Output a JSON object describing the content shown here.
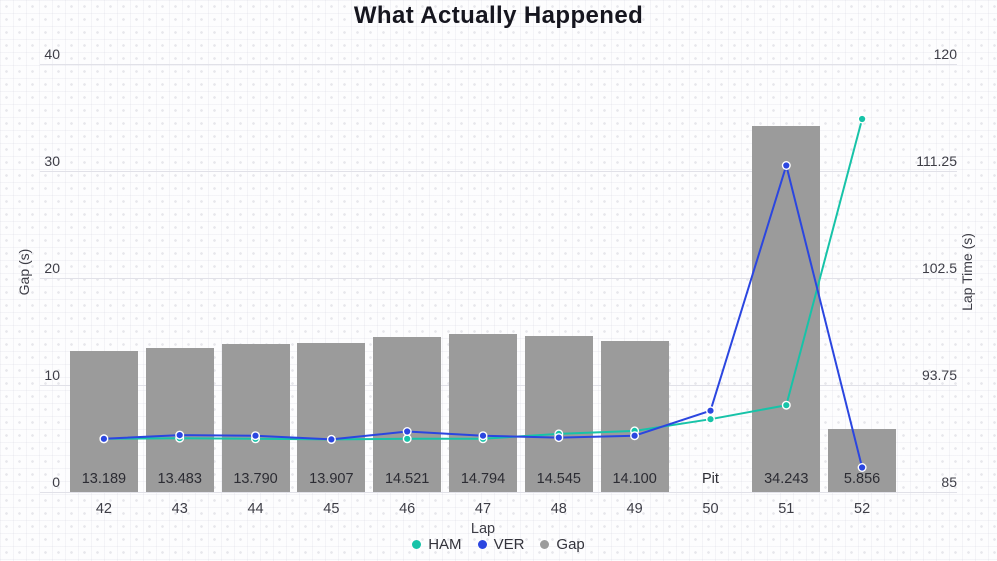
{
  "chart_data": {
    "type": "bar+line combo",
    "title": "What Actually Happened",
    "x": [
      42,
      43,
      44,
      45,
      46,
      47,
      48,
      49,
      50,
      51,
      52
    ],
    "x_tick_labels": [
      "42",
      "43",
      "44",
      "45",
      "46",
      "47",
      "48",
      "49",
      "50",
      "51",
      "52"
    ],
    "xlabel": "Lap",
    "left_axis": {
      "label": "Gap (s)",
      "range": [
        0,
        40
      ],
      "tick_values": [
        0,
        10,
        20,
        30,
        40
      ],
      "tick_labels": [
        "0",
        "10",
        "20",
        "30",
        "40"
      ]
    },
    "right_axis": {
      "label": "Lap Time (s)",
      "range": [
        85,
        120
      ],
      "tick_values": [
        85,
        93.75,
        102.5,
        111.25,
        120
      ],
      "tick_labels": [
        "85",
        "93.75",
        "102.5",
        "111.25",
        "120"
      ]
    },
    "grid": "horizontal gridlines only, dotted cross-pattern page background",
    "series": [
      {
        "name": "HAM",
        "type": "line",
        "axis": "right",
        "color": "#17c3a8",
        "values": [
          89.35,
          89.4,
          89.35,
          89.3,
          89.35,
          89.35,
          89.75,
          90.0,
          90.95,
          92.1,
          115.5
        ]
      },
      {
        "name": "VER",
        "type": "line",
        "axis": "right",
        "color": "#2b46e0",
        "values": [
          89.35,
          89.65,
          89.6,
          89.3,
          89.95,
          89.6,
          89.45,
          89.6,
          91.65,
          111.7,
          87.0
        ]
      },
      {
        "name": "Gap",
        "type": "bar",
        "axis": "left",
        "color": "#9b9b9b",
        "values": [
          13.189,
          13.483,
          13.79,
          13.907,
          14.521,
          14.794,
          14.545,
          14.1,
          null,
          34.243,
          5.856
        ],
        "bar_labels": [
          "13.189",
          "13.483",
          "13.790",
          "13.907",
          "14.521",
          "14.794",
          "14.545",
          "14.100",
          "Pit",
          "34.243",
          "5.856"
        ]
      }
    ],
    "legend": {
      "position": "bottom-center",
      "items": [
        {
          "label": "HAM",
          "color": "#17c3a8"
        },
        {
          "label": "VER",
          "color": "#2b46e0"
        },
        {
          "label": "Gap",
          "color": "#9b9b9b"
        }
      ]
    }
  }
}
